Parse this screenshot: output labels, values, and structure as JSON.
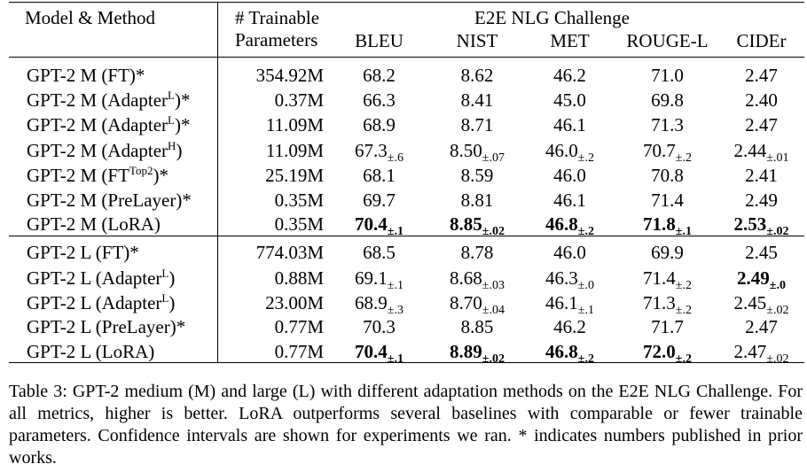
{
  "header": {
    "model_method": "Model & Method",
    "params_line1": "# Trainable",
    "params_line2": "Parameters",
    "group": "E2E NLG Challenge",
    "metrics": [
      "BLEU",
      "NIST",
      "MET",
      "ROUGE-L",
      "CIDEr"
    ]
  },
  "rows": [
    {
      "model": "GPT-2 M (FT",
      "sup": "",
      "suffix": ")*",
      "params": "354.92M",
      "cells": [
        {
          "v": "68.2",
          "ci": "",
          "b": false
        },
        {
          "v": "8.62",
          "ci": "",
          "b": false
        },
        {
          "v": "46.2",
          "ci": "",
          "b": false
        },
        {
          "v": "71.0",
          "ci": "",
          "b": false
        },
        {
          "v": "2.47",
          "ci": "",
          "b": false
        }
      ]
    },
    {
      "model": "GPT-2 M (Adapter",
      "sup": "L",
      "suffix": ")*",
      "params": "0.37M",
      "cells": [
        {
          "v": "66.3",
          "ci": "",
          "b": false
        },
        {
          "v": "8.41",
          "ci": "",
          "b": false
        },
        {
          "v": "45.0",
          "ci": "",
          "b": false
        },
        {
          "v": "69.8",
          "ci": "",
          "b": false
        },
        {
          "v": "2.40",
          "ci": "",
          "b": false
        }
      ]
    },
    {
      "model": "GPT-2 M (Adapter",
      "sup": "L",
      "suffix": ")*",
      "params": "11.09M",
      "cells": [
        {
          "v": "68.9",
          "ci": "",
          "b": false
        },
        {
          "v": "8.71",
          "ci": "",
          "b": false
        },
        {
          "v": "46.1",
          "ci": "",
          "b": false
        },
        {
          "v": "71.3",
          "ci": "",
          "b": false
        },
        {
          "v": "2.47",
          "ci": "",
          "b": false
        }
      ]
    },
    {
      "model": "GPT-2 M (Adapter",
      "sup": "H",
      "suffix": ")",
      "params": "11.09M",
      "cells": [
        {
          "v": "67.3",
          "ci": "±.6",
          "b": false
        },
        {
          "v": "8.50",
          "ci": "±.07",
          "b": false
        },
        {
          "v": "46.0",
          "ci": "±.2",
          "b": false
        },
        {
          "v": "70.7",
          "ci": "±.2",
          "b": false
        },
        {
          "v": "2.44",
          "ci": "±.01",
          "b": false
        }
      ]
    },
    {
      "model": "GPT-2 M (FT",
      "sup": "Top2",
      "suffix": ")*",
      "params": "25.19M",
      "cells": [
        {
          "v": "68.1",
          "ci": "",
          "b": false
        },
        {
          "v": "8.59",
          "ci": "",
          "b": false
        },
        {
          "v": "46.0",
          "ci": "",
          "b": false
        },
        {
          "v": "70.8",
          "ci": "",
          "b": false
        },
        {
          "v": "2.41",
          "ci": "",
          "b": false
        }
      ]
    },
    {
      "model": "GPT-2 M (PreLayer",
      "sup": "",
      "suffix": ")*",
      "params": "0.35M",
      "cells": [
        {
          "v": "69.7",
          "ci": "",
          "b": false
        },
        {
          "v": "8.81",
          "ci": "",
          "b": false
        },
        {
          "v": "46.1",
          "ci": "",
          "b": false
        },
        {
          "v": "71.4",
          "ci": "",
          "b": false
        },
        {
          "v": "2.49",
          "ci": "",
          "b": false
        }
      ]
    },
    {
      "model": "GPT-2 M (LoRA",
      "sup": "",
      "suffix": ")",
      "params": "0.35M",
      "cells": [
        {
          "v": "70.4",
          "ci": "±.1",
          "b": true
        },
        {
          "v": "8.85",
          "ci": "±.02",
          "b": true
        },
        {
          "v": "46.8",
          "ci": "±.2",
          "b": true
        },
        {
          "v": "71.8",
          "ci": "±.1",
          "b": true
        },
        {
          "v": "2.53",
          "ci": "±.02",
          "b": true
        }
      ]
    },
    {
      "model": "GPT-2 L (FT",
      "sup": "",
      "suffix": ")*",
      "params": "774.03M",
      "cells": [
        {
          "v": "68.5",
          "ci": "",
          "b": false
        },
        {
          "v": "8.78",
          "ci": "",
          "b": false
        },
        {
          "v": "46.0",
          "ci": "",
          "b": false
        },
        {
          "v": "69.9",
          "ci": "",
          "b": false
        },
        {
          "v": "2.45",
          "ci": "",
          "b": false
        }
      ]
    },
    {
      "model": "GPT-2 L (Adapter",
      "sup": "L",
      "suffix": ")",
      "params": "0.88M",
      "cells": [
        {
          "v": "69.1",
          "ci": "±.1",
          "b": false
        },
        {
          "v": "8.68",
          "ci": "±.03",
          "b": false
        },
        {
          "v": "46.3",
          "ci": "±.0",
          "b": false
        },
        {
          "v": "71.4",
          "ci": "±.2",
          "b": false
        },
        {
          "v": "2.49",
          "ci": "±.0",
          "b": true
        }
      ]
    },
    {
      "model": "GPT-2 L (Adapter",
      "sup": "L",
      "suffix": ")",
      "params": "23.00M",
      "cells": [
        {
          "v": "68.9",
          "ci": "±.3",
          "b": false
        },
        {
          "v": "8.70",
          "ci": "±.04",
          "b": false
        },
        {
          "v": "46.1",
          "ci": "±.1",
          "b": false
        },
        {
          "v": "71.3",
          "ci": "±.2",
          "b": false
        },
        {
          "v": "2.45",
          "ci": "±.02",
          "b": false
        }
      ]
    },
    {
      "model": "GPT-2 L (PreLayer",
      "sup": "",
      "suffix": ")*",
      "params": "0.77M",
      "cells": [
        {
          "v": "70.3",
          "ci": "",
          "b": false
        },
        {
          "v": "8.85",
          "ci": "",
          "b": false
        },
        {
          "v": "46.2",
          "ci": "",
          "b": false
        },
        {
          "v": "71.7",
          "ci": "",
          "b": false
        },
        {
          "v": "2.47",
          "ci": "",
          "b": false
        }
      ]
    },
    {
      "model": "GPT-2 L (LoRA",
      "sup": "",
      "suffix": ")",
      "params": "0.77M",
      "cells": [
        {
          "v": "70.4",
          "ci": "±.1",
          "b": true
        },
        {
          "v": "8.89",
          "ci": "±.02",
          "b": true
        },
        {
          "v": "46.8",
          "ci": "±.2",
          "b": true
        },
        {
          "v": "72.0",
          "ci": "±.2",
          "b": true
        },
        {
          "v": "2.47",
          "ci": "±.02",
          "b": false
        }
      ]
    }
  ],
  "caption": "Table 3: GPT-2 medium (M) and large (L) with different adaptation methods on the E2E NLG Challenge. For all metrics, higher is better. LoRA outperforms several baselines with comparable or fewer trainable parameters. Confidence intervals are shown for experiments we ran. * indicates numbers published in prior works."
}
